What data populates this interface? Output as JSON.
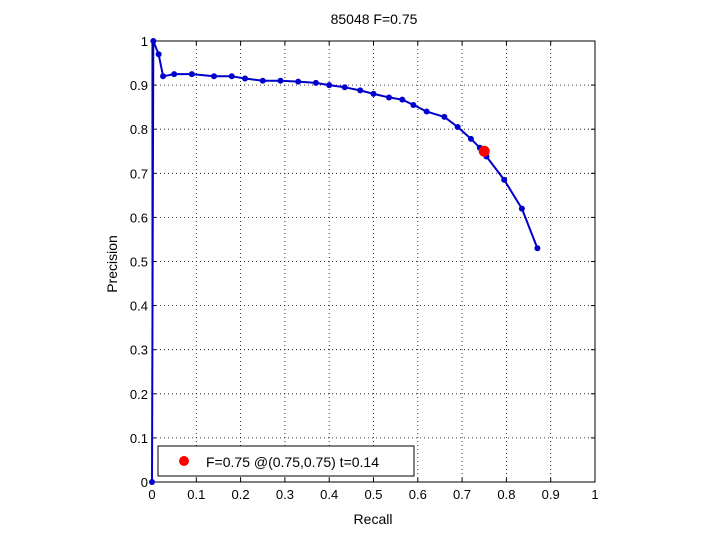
{
  "chart_data": {
    "type": "line",
    "title": "85048 F=0.75",
    "xlabel": "Recall",
    "ylabel": "Precision",
    "xlim": [
      0,
      1
    ],
    "ylim": [
      0,
      1
    ],
    "xticks": [
      0,
      0.1,
      0.2,
      0.3,
      0.4,
      0.5,
      0.6,
      0.7,
      0.8,
      0.9,
      1
    ],
    "yticks": [
      0,
      0.1,
      0.2,
      0.3,
      0.4,
      0.5,
      0.6,
      0.7,
      0.8,
      0.9,
      1
    ],
    "xtick_labels": [
      "0",
      "0.1",
      "0.2",
      "0.3",
      "0.4",
      "0.5",
      "0.6",
      "0.7",
      "0.8",
      "0.9",
      "1"
    ],
    "ytick_labels": [
      "0",
      "0.1",
      "0.2",
      "0.3",
      "0.4",
      "0.5",
      "0.6",
      "0.7",
      "0.8",
      "0.9",
      "1"
    ],
    "grid": true,
    "legend_position": "bottom-left",
    "series": [
      {
        "color": "#0000cc",
        "x": [
          0,
          0.003,
          0.015,
          0.025,
          0.05,
          0.09,
          0.14,
          0.18,
          0.21,
          0.25,
          0.29,
          0.33,
          0.37,
          0.4,
          0.435,
          0.47,
          0.5,
          0.535,
          0.565,
          0.59,
          0.62,
          0.66,
          0.69,
          0.72,
          0.74,
          0.755,
          0.795,
          0.835,
          0.87
        ],
        "y": [
          0,
          1.0,
          0.97,
          0.92,
          0.925,
          0.925,
          0.92,
          0.92,
          0.915,
          0.91,
          0.91,
          0.908,
          0.905,
          0.9,
          0.895,
          0.888,
          0.88,
          0.872,
          0.867,
          0.855,
          0.84,
          0.828,
          0.805,
          0.778,
          0.758,
          0.738,
          0.685,
          0.62,
          0.53
        ]
      }
    ],
    "highlight_point": {
      "x": 0.75,
      "y": 0.75,
      "color": "#ff0000"
    },
    "legend": {
      "entries": [
        {
          "label": "F=0.75 @(0.75,0.75) t=0.14",
          "color": "#ff0000"
        }
      ]
    }
  }
}
